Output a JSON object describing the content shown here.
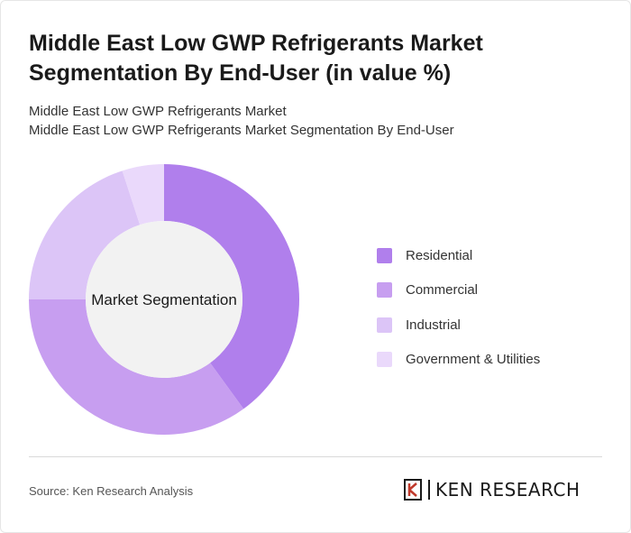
{
  "header": {
    "title": "Middle East Low GWP Refrigerants Market Segmentation By End-User (in value %)",
    "subtitle_line1": "Middle East Low GWP Refrigerants Market",
    "subtitle_line2": "Middle East Low GWP Refrigerants Market Segmentation By End-User"
  },
  "chart_data": {
    "type": "pie",
    "variant": "donut",
    "center_label": "Market Segmentation",
    "categories": [
      "Residential",
      "Commercial",
      "Industrial",
      "Government & Utilities"
    ],
    "values": [
      40,
      35,
      20,
      5
    ],
    "unit": "%",
    "colors": [
      "#b07fec",
      "#c79ef0",
      "#dcc5f7",
      "#ead9fb"
    ],
    "legend_position": "right"
  },
  "footer": {
    "source": "Source: Ken Research Analysis",
    "brand": "KEN RESEARCH"
  }
}
